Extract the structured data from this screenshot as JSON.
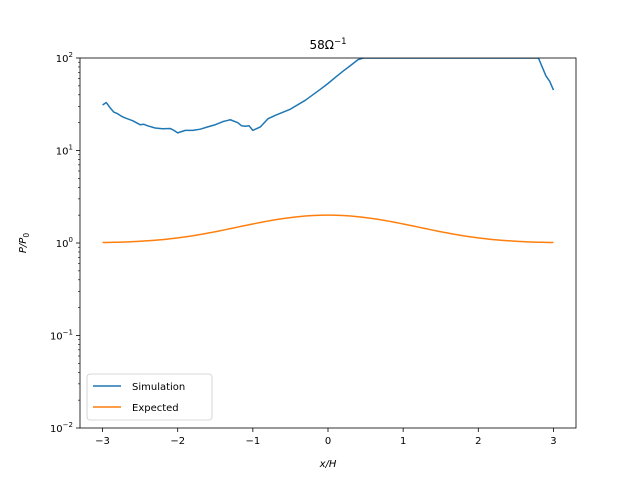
{
  "chart_data": {
    "type": "line",
    "title": "58Ω⁻¹",
    "title_parts": {
      "base": "58Ω",
      "sup": "−1"
    },
    "xlabel": "x/H",
    "ylabel_parts": {
      "base": "P/P",
      "sub": "0"
    },
    "xlim": [
      -3.3,
      3.3
    ],
    "ylim": [
      0.01,
      100
    ],
    "yscale": "log",
    "xticks": [
      -3,
      -2,
      -1,
      0,
      1,
      2,
      3
    ],
    "xtick_labels": [
      "−3",
      "−2",
      "−1",
      "0",
      "1",
      "2",
      "3"
    ],
    "yticks": [
      {
        "value": 0.01,
        "base": "10",
        "exp": "−2"
      },
      {
        "value": 0.1,
        "base": "10",
        "exp": "−1"
      },
      {
        "value": 1,
        "base": "10",
        "exp": "0"
      },
      {
        "value": 10,
        "base": "10",
        "exp": "1"
      },
      {
        "value": 100,
        "base": "10",
        "exp": "2"
      }
    ],
    "grid": false,
    "legend_position": "lower-left",
    "series": [
      {
        "name": "Simulation",
        "color": "#1f77b4",
        "x": [
          -3.0,
          -2.95,
          -2.9,
          -2.85,
          -2.8,
          -2.75,
          -2.7,
          -2.6,
          -2.5,
          -2.45,
          -2.4,
          -2.3,
          -2.2,
          -2.1,
          -2.05,
          -2.0,
          -1.9,
          -1.8,
          -1.7,
          -1.6,
          -1.5,
          -1.4,
          -1.35,
          -1.3,
          -1.2,
          -1.15,
          -1.1,
          -1.05,
          -1.0,
          -0.9,
          -0.8,
          -0.7,
          -0.5,
          -0.3,
          -0.1,
          0.0,
          0.1,
          0.2,
          0.3,
          0.4,
          0.47,
          2.8,
          2.85,
          2.9,
          2.95,
          3.0
        ],
        "y": [
          31,
          33,
          29,
          26,
          25,
          23.5,
          22.5,
          21,
          19,
          19.2,
          18.5,
          17.5,
          17.2,
          17.3,
          16.5,
          15.5,
          16.5,
          16.5,
          17,
          18,
          19,
          20.5,
          21,
          21.5,
          20,
          18.5,
          18.3,
          18.5,
          16.5,
          18,
          22,
          24,
          28,
          35,
          46,
          53,
          62,
          72,
          83,
          96,
          100,
          100,
          80,
          64,
          56,
          45
        ]
      },
      {
        "name": "Expected",
        "color": "#ff7f0e",
        "function": "1 + exp(-x^2/2)",
        "x_range": [
          -3,
          3
        ]
      }
    ]
  }
}
